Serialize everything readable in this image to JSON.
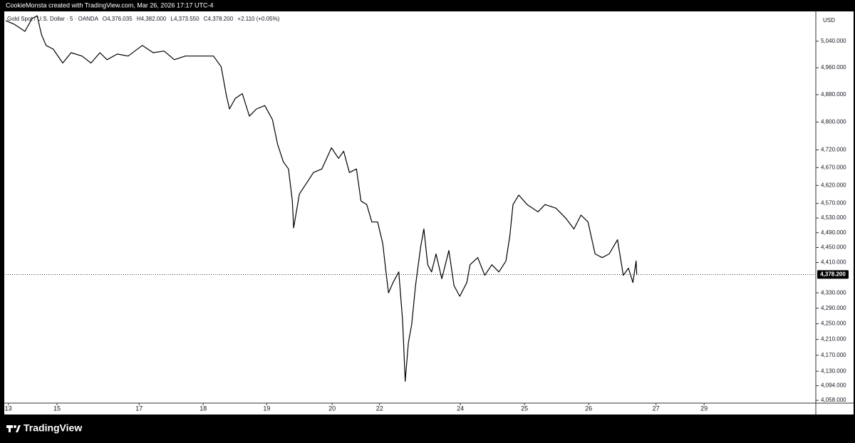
{
  "attribution": "CookieMonsta created with TradingView.com, Mar 26, 2026 17:17 UTC-4",
  "brand": "TradingView",
  "chart_data": {
    "type": "line",
    "title": "Gold Spot / U.S. Dollar · 5 · OANDA",
    "ohlc": [
      "O4,376.035",
      "H4,382.000",
      "L4,373.550",
      "C4,378.200",
      "+2.110 (+0.05%)"
    ],
    "currency": "USD",
    "color": "#000000",
    "log": true,
    "x": [
      0.0,
      0.13,
      0.3,
      0.41,
      0.49,
      0.56,
      0.63,
      0.74,
      0.89,
      1.02,
      1.19,
      1.33,
      1.47,
      1.58,
      1.74,
      1.91,
      2.13,
      2.3,
      2.47,
      2.63,
      2.8,
      3.02,
      3.24,
      3.36,
      3.44,
      3.49,
      3.58,
      3.69,
      3.8,
      3.91,
      4.04,
      4.16,
      4.24,
      4.33,
      4.41,
      4.47,
      4.49,
      4.58,
      4.69,
      4.8,
      4.93,
      5.08,
      5.19,
      5.27,
      5.36,
      5.47,
      5.54,
      5.63,
      5.71,
      5.8,
      5.88,
      5.93,
      5.97,
      6.04,
      6.13,
      6.19,
      6.23,
      6.28,
      6.33,
      6.39,
      6.47,
      6.52,
      6.58,
      6.64,
      6.71,
      6.8,
      6.91,
      6.99,
      7.08,
      7.19,
      7.24,
      7.36,
      7.47,
      7.58,
      7.69,
      7.8,
      7.86,
      7.91,
      8.0,
      8.13,
      8.3,
      8.41,
      8.58,
      8.74,
      8.86,
      8.97,
      9.08,
      9.19,
      9.3,
      9.41,
      9.54,
      9.63,
      9.71,
      9.78,
      9.83,
      9.84
    ],
    "values": [
      5103,
      5092,
      5070,
      5109,
      5118,
      5059,
      5027,
      5016,
      4974,
      5005,
      4995,
      4974,
      5005,
      4984,
      5001,
      4995,
      5027,
      5005,
      5010,
      4984,
      4995,
      4995,
      4995,
      4963,
      4879,
      4838,
      4869,
      4883,
      4817,
      4838,
      4848,
      4807,
      4736,
      4686,
      4666,
      4577,
      4503,
      4596,
      4626,
      4656,
      4666,
      4726,
      4696,
      4716,
      4656,
      4666,
      4577,
      4567,
      4519,
      4519,
      4461,
      4385,
      4330,
      4357,
      4385,
      4257,
      4105,
      4202,
      4248,
      4349,
      4452,
      4500,
      4404,
      4385,
      4433,
      4367,
      4442,
      4349,
      4321,
      4357,
      4404,
      4423,
      4376,
      4404,
      4385,
      4414,
      4480,
      4567,
      4593,
      4567,
      4547,
      4567,
      4557,
      4528,
      4500,
      4538,
      4519,
      4433,
      4423,
      4433,
      4471,
      4376,
      4395,
      4357,
      4414,
      4378.2
    ],
    "last_price": {
      "value": 4378.2,
      "label": "4,378.200"
    },
    "xlim": [
      0,
      12.61
    ],
    "xticks": [
      {
        "value": 0.04,
        "label": "13"
      },
      {
        "value": 0.8,
        "label": "15"
      },
      {
        "value": 2.08,
        "label": "17"
      },
      {
        "value": 3.08,
        "label": "18"
      },
      {
        "value": 4.07,
        "label": "19"
      },
      {
        "value": 5.09,
        "label": "20"
      },
      {
        "value": 5.83,
        "label": "22"
      },
      {
        "value": 7.09,
        "label": "24"
      },
      {
        "value": 8.09,
        "label": "25"
      },
      {
        "value": 9.09,
        "label": "26"
      },
      {
        "value": 10.14,
        "label": "27"
      },
      {
        "value": 10.89,
        "label": "29"
      }
    ],
    "ylim": [
      4053,
      5127
    ],
    "yticks": [
      {
        "value": 5040,
        "label": "5,040.000"
      },
      {
        "value": 4960,
        "label": "4,960.000"
      },
      {
        "value": 4880,
        "label": "4,880.000"
      },
      {
        "value": 4800,
        "label": "4,800.000"
      },
      {
        "value": 4720,
        "label": "4,720.000"
      },
      {
        "value": 4670,
        "label": "4,670.000"
      },
      {
        "value": 4620,
        "label": "4,620.000"
      },
      {
        "value": 4570,
        "label": "4,570.000"
      },
      {
        "value": 4530,
        "label": "4,530.000"
      },
      {
        "value": 4490,
        "label": "4,490.000"
      },
      {
        "value": 4450,
        "label": "4,450.000"
      },
      {
        "value": 4410,
        "label": "4,410.000"
      },
      {
        "value": 4330,
        "label": "4,330.000"
      },
      {
        "value": 4290,
        "label": "4,290.000"
      },
      {
        "value": 4250,
        "label": "4,250.000"
      },
      {
        "value": 4210,
        "label": "4,210.000"
      },
      {
        "value": 4170,
        "label": "4,170.000"
      },
      {
        "value": 4130,
        "label": "4,130.000"
      },
      {
        "value": 4094,
        "label": "4,094.000"
      },
      {
        "value": 4058,
        "label": "4,058.000"
      }
    ]
  }
}
